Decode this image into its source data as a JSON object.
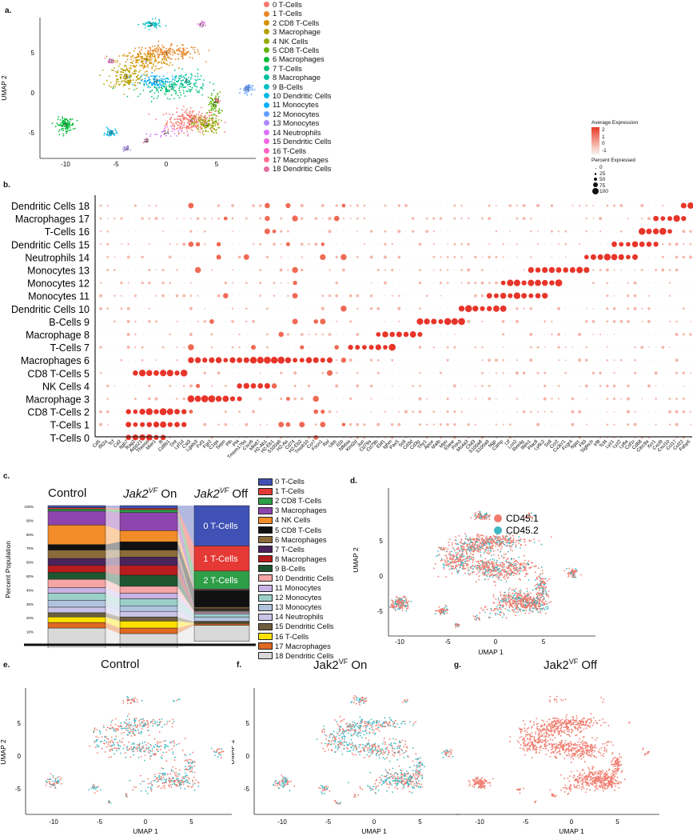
{
  "panel_labels": {
    "a": "a.",
    "b": "b.",
    "c": "c.",
    "d": "d.",
    "e": "e.",
    "f": "f.",
    "g": "g."
  },
  "clusters": [
    {
      "id": 0,
      "label": "0 T-Cells",
      "color": "#F8766D"
    },
    {
      "id": 1,
      "label": "1 T-Cells",
      "color": "#E88526"
    },
    {
      "id": 2,
      "label": "2 CD8 T-Cells",
      "color": "#D39200"
    },
    {
      "id": 3,
      "label": "3 Macrophage",
      "color": "#B79F00"
    },
    {
      "id": 4,
      "label": "4 NK Cells",
      "color": "#93AA00"
    },
    {
      "id": 5,
      "label": "5 CD8 T-Cells",
      "color": "#5EB300"
    },
    {
      "id": 6,
      "label": "6 Macrophages",
      "color": "#00BA38"
    },
    {
      "id": 7,
      "label": "7 T-Cells",
      "color": "#00BF74"
    },
    {
      "id": 8,
      "label": "8 Macrophage",
      "color": "#00C19F"
    },
    {
      "id": 9,
      "label": "9 B-Cells",
      "color": "#00BFC4"
    },
    {
      "id": 10,
      "label": "10 Dendritic Cells",
      "color": "#00B9E3"
    },
    {
      "id": 11,
      "label": "11 Monocytes",
      "color": "#00ADFA"
    },
    {
      "id": 12,
      "label": "12 Monocytes",
      "color": "#619CFF"
    },
    {
      "id": 13,
      "label": "13 Monocytes",
      "color": "#AE87FF"
    },
    {
      "id": 14,
      "label": "14 Neutrophils",
      "color": "#DB72FB"
    },
    {
      "id": 15,
      "label": "15 Dendritic Cells",
      "color": "#F564E3"
    },
    {
      "id": 16,
      "label": "16 T-Cells",
      "color": "#FF61C3"
    },
    {
      "id": 17,
      "label": "17 Macrophages",
      "color": "#FF6C91"
    },
    {
      "id": 18,
      "label": "18 Dendritic Cells",
      "color": "#E46EA0"
    }
  ],
  "umap_axes": {
    "xlabel": "UMAP 1",
    "ylabel": "UMAP 2",
    "xticks": [
      "-10",
      "-5",
      "0",
      "5"
    ],
    "yticks": [
      "5",
      "0",
      "-5"
    ]
  },
  "dotplot": {
    "legend_avg_title": "Average Expression",
    "legend_avg_ticks": [
      "2",
      "1",
      "0",
      "-1"
    ],
    "legend_pct_title": "Percent Expressed",
    "legend_pct_ticks": [
      "0",
      "25",
      "50",
      "75",
      "100"
    ],
    "rows": [
      "Dendritic Cells 18",
      "Macrophages 17",
      "T-Cells 16",
      "Dendritic Cells 15",
      "Neutrophils 14",
      "Monocytes 13",
      "Monocytes 12",
      "Monocytes 11",
      "Dendritic Cells 10",
      "B-Cells 9",
      "Macrophage 8",
      "T-Cells 7",
      "Macrophages 6",
      "CD8 T-Cells 5",
      "NK Cells 4",
      "Macrophage 3",
      "CD8 T-Cells 2",
      "T-Cells 1",
      "T-Cells 0"
    ],
    "genes": [
      "Cd5",
      "Ifit2a",
      "Tcf",
      "Cd2",
      "Itgb7",
      "Rag2",
      "Arpp21",
      "Themis",
      "Mier1",
      "Ifi",
      "Cd8b1",
      "Dnt",
      "Lyl1d",
      "Cst3",
      "Lgals3",
      "Fxf1",
      "Fgr2",
      "C1qa",
      "Sepn",
      "Plh",
      "Pf4",
      "Tmem176a",
      "Cxcr6",
      "Mki67",
      "H2-Ab1",
      "H2-Eb1",
      "S100a6",
      "H2-Aa",
      "Cd74",
      "H2-Eb2",
      "Tmsb10",
      "Ccr7",
      "Fscn1",
      "Rel",
      "Ubb",
      "Il1b",
      "Nfkbia",
      "Kmt2d",
      "Jun",
      "Cd79a",
      "Cd79b",
      "Ebf1",
      "Ighm",
      "Pax5",
      "Sell",
      "Cd3d",
      "Cd3g",
      "Thy1",
      "Apoe",
      "Mafb",
      "Mpo",
      "Elane",
      "Prtn3",
      "Ms4a3",
      "Chil3",
      "S100a8",
      "S100a9",
      "Ngp",
      "Camp",
      "Ltf",
      "Lcn2",
      "Retnlg",
      "Ifitm1",
      "Plac8",
      "Ly6c2",
      "Sell",
      "Ccr2",
      "Cx3cr1",
      "Fcgr4",
      "Itgax",
      "Flt3",
      "Siglech",
      "Irf8",
      "Tcf4",
      "Lyz1",
      "Lyz2",
      "Ly6a",
      "Csf1r",
      "Cd68",
      "Clec9a",
      "Xcr1",
      "Cxcl9",
      "Cxcl10",
      "Ccl17",
      "Ccl22",
      "Fabp5"
    ]
  },
  "panel_c": {
    "groups": [
      "Control",
      "Jak2VF On",
      "Jak2VF Off"
    ],
    "group_base": [
      "Control",
      "Jak2",
      "Jak2"
    ],
    "group_sup": [
      "",
      "VF",
      "VF"
    ],
    "group_suffix": [
      "",
      "On",
      "Off"
    ],
    "ylabel": "Percent Population",
    "yticks": [
      "100%",
      "90%",
      "80%",
      "70%",
      "60%",
      "50%",
      "40%",
      "30%",
      "20%",
      "10%"
    ],
    "off_labels": [
      "0 T-Cells",
      "1 T-Cells",
      "2 T-Cells"
    ],
    "colors": [
      "#3F51B5",
      "#E53935",
      "#2E9E47",
      "#8E44AD",
      "#F28C28",
      "#111111",
      "#8B6B3A",
      "#4A235A",
      "#B71C1C",
      "#1E5631",
      "#F5A5A5",
      "#C9B3E6",
      "#9AD0C8",
      "#B0C4DE",
      "#C9C4E8",
      "#6E5E3E",
      "#FFE100",
      "#E06820",
      "#D9D9D9"
    ],
    "legend": [
      "0 T-Cells",
      "1 T-Cells",
      "2 CD8 T-Cells",
      "3 Macrophages",
      "4 NK Cells",
      "5 CD8 T-Cells",
      "6 Macrophages",
      "7 T-Cells",
      "8 Macrophages",
      "9 B-Cells",
      "10 Dendritic Cells",
      "11 Monocytes",
      "12 Monocytes",
      "13 Monocytes",
      "14 Neutrophils",
      "15 Dendritic Cells",
      "16 T-Cells",
      "17 Macrophages",
      "18 Dendritic Cells"
    ]
  },
  "panel_d": {
    "legend": [
      {
        "label": "CD45.1",
        "color": "#F07C6E"
      },
      {
        "label": "CD45.2",
        "color": "#3FB8C4"
      }
    ]
  },
  "bottom_titles": {
    "e": "Control",
    "f_base": "Jak2",
    "f_sup": "VF",
    "f_suffix": " On",
    "g_base": "Jak2",
    "g_sup": "VF",
    "g_suffix": " Off"
  }
}
